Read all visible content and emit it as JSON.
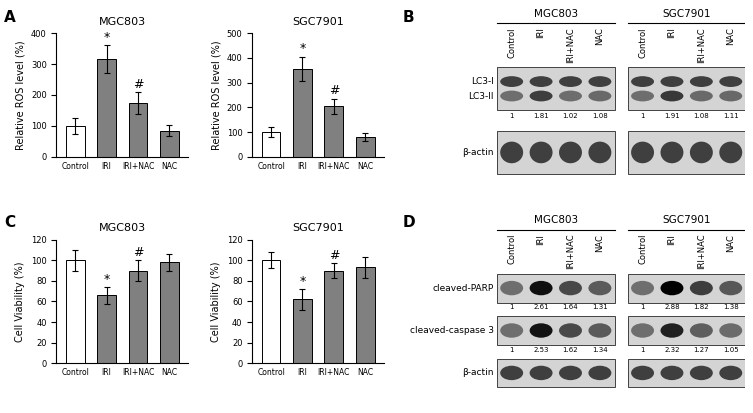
{
  "panel_labels": [
    "A",
    "B",
    "C",
    "D"
  ],
  "chart_data": [
    {
      "type": "bar",
      "title": "MGC803",
      "ylabel": "Relative ROS level (%)",
      "categories": [
        "Control",
        "IRI",
        "IRI+NAC",
        "NAC"
      ],
      "values": [
        100,
        315,
        175,
        85
      ],
      "errors": [
        25,
        45,
        35,
        18
      ],
      "annotations": [
        null,
        "*",
        "#",
        null
      ],
      "colors": [
        "#ffffff",
        "#808080",
        "#808080",
        "#808080"
      ],
      "ylim": [
        0,
        400
      ],
      "yticks": [
        0,
        100,
        200,
        300,
        400
      ]
    },
    {
      "type": "bar",
      "title": "SGC7901",
      "ylabel": "Relative ROS level (%)",
      "categories": [
        "Control",
        "IRI",
        "IRI+NAC",
        "NAC"
      ],
      "values": [
        100,
        355,
        205,
        80
      ],
      "errors": [
        20,
        50,
        30,
        15
      ],
      "annotations": [
        null,
        "*",
        "#",
        null
      ],
      "colors": [
        "#ffffff",
        "#808080",
        "#808080",
        "#808080"
      ],
      "ylim": [
        0,
        500
      ],
      "yticks": [
        0,
        100,
        200,
        300,
        400,
        500
      ]
    },
    {
      "type": "bar",
      "title": "MGC803",
      "ylabel": "Cell Viability (%)",
      "categories": [
        "Control",
        "IRI",
        "IRI+NAC",
        "NAC"
      ],
      "values": [
        100,
        66,
        90,
        98
      ],
      "errors": [
        10,
        8,
        10,
        8
      ],
      "annotations": [
        null,
        "*",
        "#",
        null
      ],
      "colors": [
        "#ffffff",
        "#808080",
        "#808080",
        "#808080"
      ],
      "ylim": [
        0,
        120
      ],
      "yticks": [
        0,
        20,
        40,
        60,
        80,
        100,
        120
      ]
    },
    {
      "type": "bar",
      "title": "SGC7901",
      "ylabel": "Cell Viability (%)",
      "categories": [
        "Control",
        "IRI",
        "IRI+NAC",
        "NAC"
      ],
      "values": [
        100,
        62,
        90,
        93
      ],
      "errors": [
        8,
        10,
        7,
        10
      ],
      "annotations": [
        null,
        "*",
        "#",
        null
      ],
      "colors": [
        "#ffffff",
        "#808080",
        "#808080",
        "#808080"
      ],
      "ylim": [
        0,
        120
      ],
      "yticks": [
        0,
        20,
        40,
        60,
        80,
        100,
        120
      ]
    }
  ],
  "blots": [
    {
      "groups": [
        "MGC803",
        "SGC7901"
      ],
      "lanes": [
        "Control",
        "IRI",
        "IRI+NAC",
        "NAC"
      ],
      "rows": [
        {
          "bands": [
            "LC3-I",
            "LC3-II"
          ],
          "values": [
            [
              1,
              1.81,
              1.02,
              1.08
            ],
            [
              1,
              1.91,
              1.08,
              1.11
            ]
          ]
        },
        {
          "bands": [
            "β-actin"
          ]
        }
      ]
    },
    {
      "groups": [
        "MGC803",
        "SGC7901"
      ],
      "lanes": [
        "Control",
        "IRI",
        "IRI+NAC",
        "NAC"
      ],
      "rows": [
        {
          "bands": [
            "cleaved-PARP"
          ],
          "values": [
            [
              1,
              2.61,
              1.64,
              1.31
            ],
            [
              1,
              2.88,
              1.82,
              1.38
            ]
          ]
        },
        {
          "bands": [
            "cleaved-caspase 3"
          ],
          "values": [
            [
              1,
              2.53,
              1.62,
              1.34
            ],
            [
              1,
              2.32,
              1.27,
              1.05
            ]
          ]
        },
        {
          "bands": [
            "β-actin"
          ]
        }
      ]
    }
  ]
}
